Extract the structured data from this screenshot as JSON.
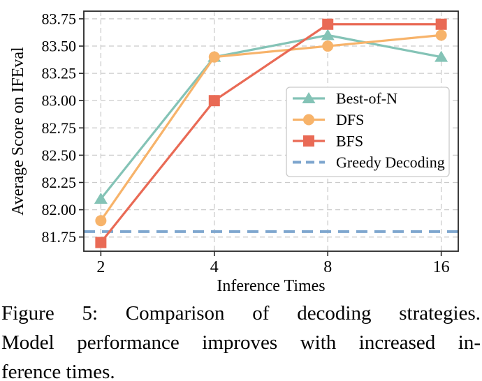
{
  "figure": {
    "caption_lines": [
      "Figure 5: Comparison of decoding strategies.",
      "Model performance improves with increased in-",
      "ference times."
    ]
  },
  "chart_data": {
    "type": "line",
    "title": "",
    "xlabel": "Inference Times",
    "ylabel": "Average Score on IFEval",
    "x": [
      2,
      4,
      8,
      16
    ],
    "x_scale": "log2",
    "xtick_labels": [
      "2",
      "4",
      "8",
      "16"
    ],
    "yticks": [
      81.75,
      82.0,
      82.25,
      82.5,
      82.75,
      83.0,
      83.25,
      83.5,
      83.75
    ],
    "ytick_labels": [
      "81.75",
      "82.00",
      "82.25",
      "82.50",
      "82.75",
      "83.00",
      "83.25",
      "83.50",
      "83.75"
    ],
    "xlim_log2": [
      0.85,
      4.15
    ],
    "ylim": [
      81.62,
      83.82
    ],
    "grid": true,
    "grid_style": "dashed",
    "legend_position": "center-right",
    "series": [
      {
        "name": "Best-of-N",
        "marker": "triangle",
        "color": "#84C3B6",
        "values": [
          82.1,
          83.4,
          83.6,
          83.4
        ]
      },
      {
        "name": "DFS",
        "marker": "circle",
        "color": "#F7B36A",
        "values": [
          81.9,
          83.4,
          83.5,
          83.6
        ]
      },
      {
        "name": "BFS",
        "marker": "square",
        "color": "#E96A55",
        "values": [
          81.7,
          83.0,
          83.7,
          83.7
        ]
      }
    ],
    "reference_line": {
      "name": "Greedy Decoding",
      "style": "dashed",
      "color": "#7EA6CE",
      "value": 81.8
    },
    "colors": {
      "grid": "#CBCBCB",
      "spine": "#262626",
      "legend_border": "#C9C9C9",
      "text": "#000000"
    }
  }
}
